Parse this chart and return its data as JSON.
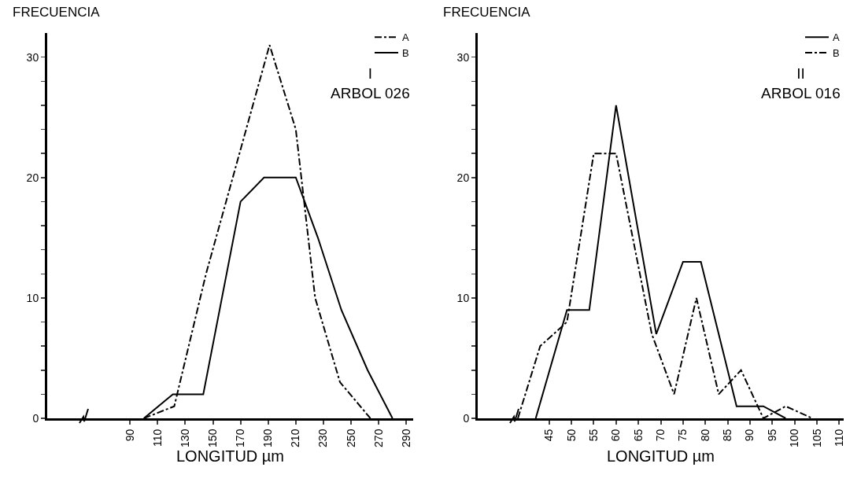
{
  "chart_data": [
    {
      "type": "line",
      "title": "I\nARBOL 026",
      "xlabel": "LONGITUD µm",
      "ylabel": "FRECUENCIA",
      "legend": "top right",
      "grid": false,
      "marker": "none",
      "xlim": [
        30,
        295
      ],
      "xticks": [
        90,
        110,
        130,
        150,
        170,
        190,
        210,
        230,
        250,
        270,
        290
      ],
      "ylim": [
        0,
        32
      ],
      "yticks": [
        0,
        {
          "value": 2,
          "label": null
        },
        {
          "value": 4,
          "label": null
        },
        {
          "value": 6,
          "label": null
        },
        {
          "value": 8,
          "label": null
        },
        10,
        {
          "value": 12,
          "label": null
        },
        {
          "value": 14,
          "label": null
        },
        {
          "value": 16,
          "label": null
        },
        {
          "value": 18,
          "label": null
        },
        20,
        {
          "value": 22,
          "label": null
        },
        {
          "value": 24,
          "label": null
        },
        {
          "value": 26,
          "label": null
        },
        {
          "value": 28,
          "label": null
        },
        30
      ],
      "series": [
        {
          "name": "A",
          "color": "#000000",
          "line_style": "dashed",
          "x": [
            100,
            122,
            145,
            191,
            210,
            224,
            242,
            264
          ],
          "values": [
            0,
            1,
            12,
            31,
            24,
            10,
            3,
            0
          ]
        },
        {
          "name": "B",
          "color": "#000000",
          "line_style": "solid",
          "x": [
            100,
            121,
            143,
            170,
            187,
            210,
            226,
            243,
            262,
            280
          ],
          "values": [
            0,
            2,
            2,
            18,
            20,
            20,
            15,
            9,
            4,
            0
          ]
        }
      ]
    },
    {
      "type": "line",
      "title": "II\nARBOL 016",
      "xlabel": "LONGITUD µm",
      "ylabel": "FRECUENCIA",
      "legend": "top right",
      "grid": false,
      "marker": "none",
      "xlim": [
        29,
        111
      ],
      "xticks": [
        45,
        50,
        55,
        60,
        65,
        70,
        75,
        80,
        85,
        90,
        95,
        100,
        105,
        110
      ],
      "ylim": [
        0,
        32
      ],
      "yticks": [
        0,
        {
          "value": 2,
          "label": null
        },
        {
          "value": 4,
          "label": null
        },
        {
          "value": 6,
          "label": null
        },
        {
          "value": 8,
          "label": null
        },
        10,
        {
          "value": 12,
          "label": null
        },
        {
          "value": 14,
          "label": null
        },
        {
          "value": 16,
          "label": null
        },
        {
          "value": 18,
          "label": null
        },
        20,
        {
          "value": 22,
          "label": null
        },
        {
          "value": 24,
          "label": null
        },
        {
          "value": 26,
          "label": null
        },
        {
          "value": 28,
          "label": null
        },
        30
      ],
      "series": [
        {
          "name": "A",
          "color": "#000000",
          "line_style": "solid",
          "x": [
            42,
            49,
            54,
            60,
            69,
            75,
            79,
            87,
            93,
            98
          ],
          "values": [
            0,
            9,
            9,
            26,
            7,
            13,
            13,
            1,
            1,
            0
          ]
        },
        {
          "name": "B",
          "color": "#000000",
          "line_style": "dashed",
          "x": [
            38,
            43,
            49,
            55,
            60,
            68,
            73,
            78,
            83,
            88,
            93,
            98,
            104
          ],
          "values": [
            0,
            6,
            8,
            22,
            22,
            7,
            2,
            10,
            2,
            4,
            0,
            1,
            0
          ]
        }
      ]
    }
  ]
}
